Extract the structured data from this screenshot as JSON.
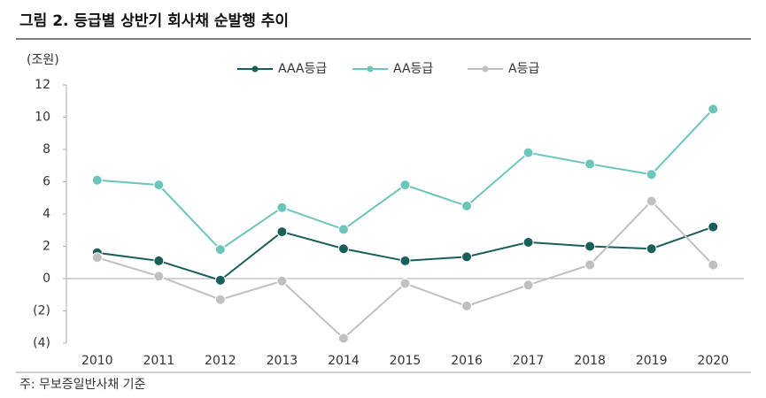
{
  "chart_data": {
    "type": "line",
    "title": "그림 2. 등급별 상반기 회사채 순발행 추이",
    "unit": "(조원)",
    "note": "주: 무보증일반사채 기준",
    "categories": [
      "2010",
      "2011",
      "2012",
      "2013",
      "2014",
      "2015",
      "2016",
      "2017",
      "2018",
      "2019",
      "2020"
    ],
    "series": [
      {
        "name": "AAA등급",
        "color": "#1a5e5a",
        "values": [
          1.6,
          1.1,
          -0.1,
          2.9,
          1.85,
          1.1,
          1.35,
          2.25,
          2.0,
          1.85,
          3.2
        ]
      },
      {
        "name": "AA등급",
        "color": "#6cc5bb",
        "values": [
          6.1,
          5.8,
          1.8,
          4.4,
          3.05,
          5.8,
          4.5,
          7.8,
          7.1,
          6.45,
          10.5
        ]
      },
      {
        "name": "A등급",
        "color": "#c0c0c0",
        "values": [
          1.3,
          0.15,
          -1.3,
          -0.15,
          -3.7,
          -0.3,
          -1.7,
          -0.4,
          0.85,
          4.8,
          0.85
        ]
      }
    ],
    "ylim": [
      -4,
      12
    ],
    "yticks": [
      {
        "value": -4,
        "label": "(4)"
      },
      {
        "value": -2,
        "label": "(2)"
      },
      0,
      2,
      4,
      6,
      8,
      10,
      12
    ],
    "legend": "top"
  }
}
